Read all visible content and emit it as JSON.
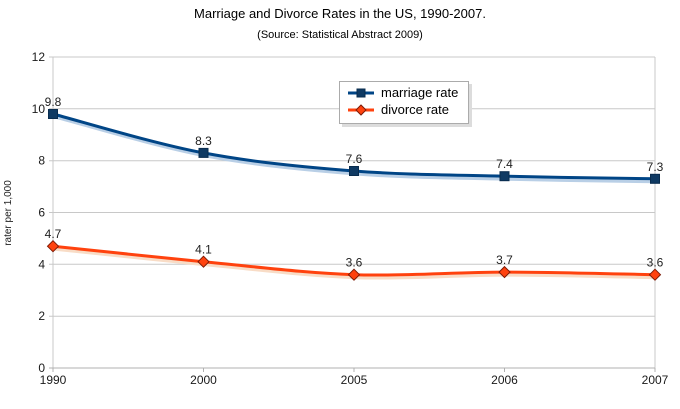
{
  "page": {
    "background": "#ffffff"
  },
  "chart_data": {
    "type": "line",
    "title": "Marriage and Divorce Rates in the US, 1990-2007.",
    "subtitle": "(Source: Statistical Abstract 2009)",
    "ylabel": "rater per 1,000",
    "xlabel": "",
    "categories": [
      "1990",
      "2000",
      "2005",
      "2006",
      "2007"
    ],
    "series": [
      {
        "name": "marriage rate",
        "values": [
          9.8,
          8.3,
          7.6,
          7.4,
          7.3
        ],
        "color": "#004586",
        "shadow": "#b9cfe6",
        "marker": "square",
        "marker_fill": "#0f3a63",
        "marker_stroke": "#092c4e"
      },
      {
        "name": "divorce rate",
        "values": [
          4.7,
          4.1,
          3.6,
          3.7,
          3.6
        ],
        "color": "#ff420e",
        "shadow": "#f8dcc6",
        "marker": "diamond",
        "marker_fill": "#ff420e",
        "marker_stroke": "#7c1a06"
      }
    ],
    "ylim": [
      0,
      12
    ],
    "ytick_step": 2,
    "grid": true,
    "smooth": true,
    "data_labels": true,
    "legend_position": "top-center-inside",
    "grid_color": "#c8c8c8",
    "axis_color": "#b0b0b0",
    "text_color": "#222222"
  }
}
